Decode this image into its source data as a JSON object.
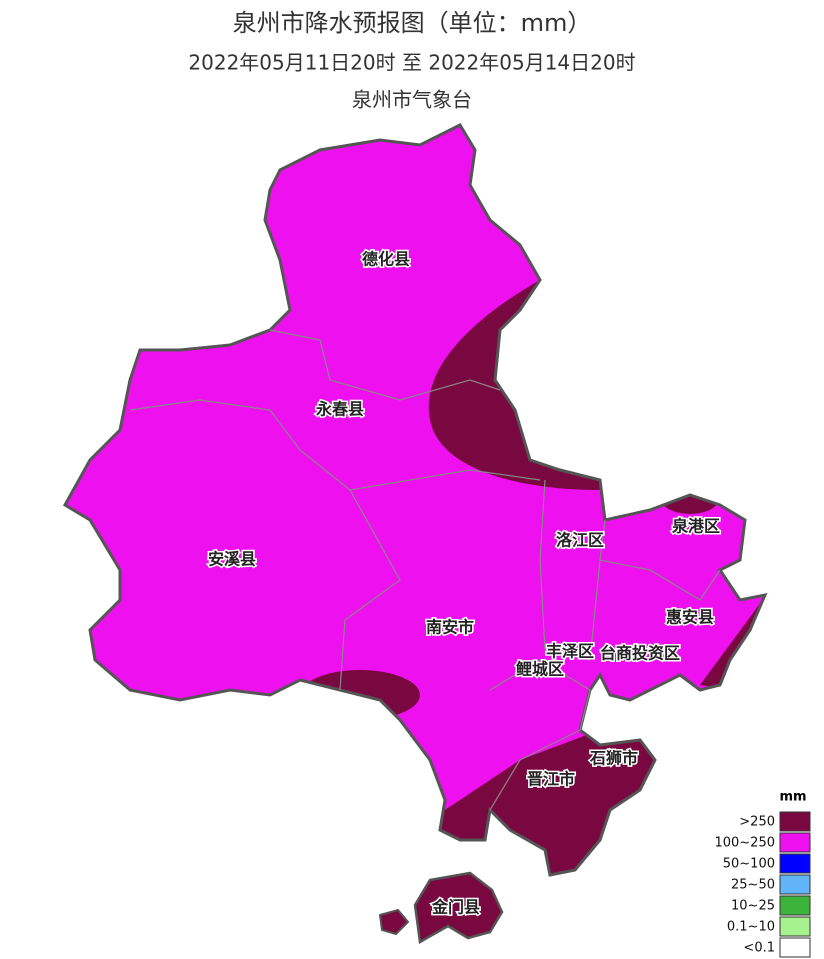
{
  "header": {
    "title": "泉州市降水预报图（单位：mm）",
    "period": "2022年05月11日20时  至  2022年05月14日20时",
    "agency": "泉州市气象台"
  },
  "regions": [
    {
      "label": "德化县"
    },
    {
      "label": "永春县"
    },
    {
      "label": "安溪县"
    },
    {
      "label": "南安市"
    },
    {
      "label": "洛江区"
    },
    {
      "label": "泉港区"
    },
    {
      "label": "惠安县"
    },
    {
      "label": "丰泽区"
    },
    {
      "label": "台商投资区"
    },
    {
      "label": "鲤城区"
    },
    {
      "label": "石狮市"
    },
    {
      "label": "晋江市"
    },
    {
      "label": "金门县"
    }
  ],
  "legend": {
    "unit": "mm",
    "items": [
      {
        "label": ">250",
        "color": "#7a0840"
      },
      {
        "label": "100~250",
        "color": "#ee10ee"
      },
      {
        "label": "50~100",
        "color": "#0000ff"
      },
      {
        "label": "25~50",
        "color": "#62b4f8"
      },
      {
        "label": "10~25",
        "color": "#3cb43c"
      },
      {
        "label": "0.1~10",
        "color": "#a6f28f"
      },
      {
        "label": "<0.1",
        "color": "#ffffff"
      }
    ]
  }
}
